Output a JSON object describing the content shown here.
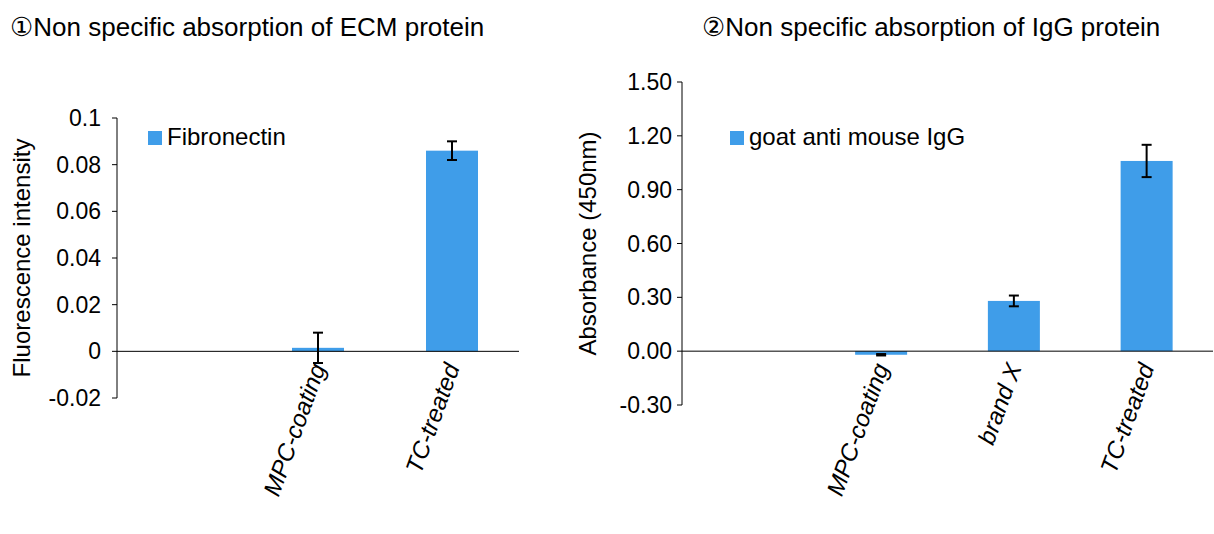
{
  "chart_data": [
    {
      "type": "bar",
      "title": "①Non specific absorption of ECM protein",
      "y_label": "Fluorescence intensity",
      "categories": [
        null,
        "MPC-coating",
        "TC-treated"
      ],
      "series": [
        {
          "name": "Fibronectin",
          "color": "#3f9de9",
          "values": [
            null,
            0.0015,
            0.086
          ],
          "errors": [
            null,
            0.0065,
            0.004
          ]
        }
      ],
      "ylim": [
        -0.02,
        0.1
      ],
      "yticks": [
        -0.02,
        0,
        0.02,
        0.04,
        0.06,
        0.08,
        0.1
      ],
      "grid": false,
      "legend": "top-left"
    },
    {
      "type": "bar",
      "title": "②Non specific absorption of IgG protein",
      "y_label": "Absorbance (450nm)",
      "categories": [
        null,
        "MPC-coating",
        "brand X",
        "TC-treated"
      ],
      "series": [
        {
          "name": "goat anti mouse IgG",
          "color": "#3f9de9",
          "values": [
            null,
            -0.02,
            0.28,
            1.06
          ],
          "errors": [
            null,
            0.004,
            0.03,
            0.09
          ]
        }
      ],
      "ylim": [
        -0.3,
        1.5
      ],
      "yticks": [
        {
          "value": -0.3,
          "label": "-0.30"
        },
        {
          "value": 0,
          "label": "0.00"
        },
        {
          "value": 0.3,
          "label": "0.30"
        },
        {
          "value": 0.6,
          "label": "0.60"
        },
        {
          "value": 0.9,
          "label": "0.90"
        },
        {
          "value": 1.2,
          "label": "1.20"
        },
        {
          "value": 1.5,
          "label": "1.50"
        }
      ],
      "grid": false,
      "legend": "top-left"
    }
  ]
}
